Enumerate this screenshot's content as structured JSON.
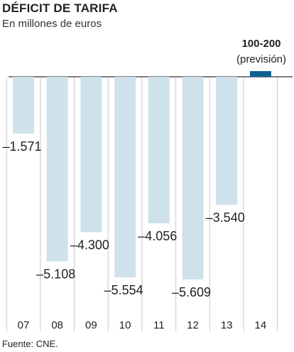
{
  "title": "DÉFICIT DE TARIFA",
  "subtitle": "En millones de euros",
  "source": "Fuente: CNE.",
  "chart_data": {
    "type": "bar",
    "title": "DÉFICIT DE TARIFA",
    "subtitle": "En millones de euros",
    "categories": [
      "07",
      "08",
      "09",
      "10",
      "11",
      "12",
      "13",
      "14"
    ],
    "values": [
      -1571,
      -5108,
      -4300,
      -5554,
      -4056,
      -5609,
      -3540,
      150
    ],
    "value_labels": [
      "–1.571",
      "–5.108",
      "–4.300",
      "–5.554",
      "–4.056",
      "–5.609",
      "–3.540",
      ""
    ],
    "forecast": {
      "category": "14",
      "label_top": "100-200",
      "label_bottom": "(previsión)"
    },
    "colors": {
      "bar": "#cfe2ec",
      "forecast": "#0f5f93",
      "axis": "#555555",
      "grid": "#c8c8c8"
    },
    "ylim": [
      -6000,
      300
    ],
    "grid": true,
    "legend": "none"
  }
}
